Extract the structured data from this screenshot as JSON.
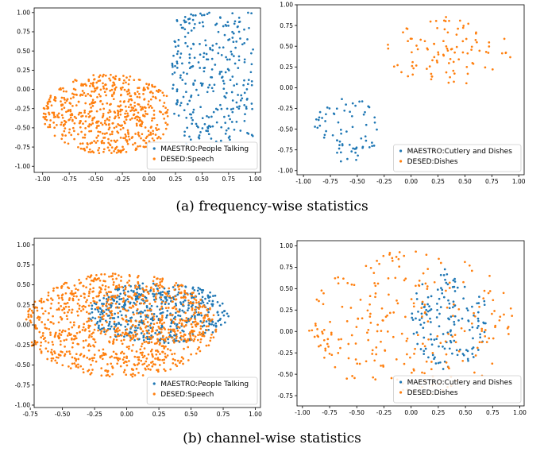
{
  "captions": {
    "a": "(a)  frequency-wise statistics",
    "b": "(b)  channel-wise statistics"
  },
  "colors": {
    "series_1": "#1f77b4",
    "series_2": "#ff7f0e"
  },
  "chart_data": [
    {
      "type": "scatter",
      "panel": "a-left",
      "xlim": [
        -1.08,
        1.05
      ],
      "ylim": [
        -1.08,
        1.06
      ],
      "xticks": [
        "-1.00",
        "-0.75",
        "-0.50",
        "-0.25",
        "0.00",
        "0.25",
        "0.50",
        "0.75",
        "1.00"
      ],
      "yticks": [
        "1.00",
        "0.75",
        "0.50",
        "0.25",
        "0.00",
        "-0.25",
        "-0.50",
        "-0.75",
        "-1.00"
      ],
      "legend_position": "lower-right",
      "grid": false,
      "series": [
        {
          "name": "MAESTRO:People Talking",
          "color": "#1f77b4",
          "n": 300,
          "cluster": {
            "type": "uniform",
            "x": [
              0.22,
              0.98
            ],
            "y": [
              -0.75,
              1.0
            ],
            "center": [
              0.55,
              0.2
            ]
          }
        },
        {
          "name": "DESED:Speech",
          "color": "#ff7f0e",
          "n": 600,
          "cluster": {
            "type": "ellipse",
            "cx": -0.38,
            "cy": -0.32,
            "rx": 0.62,
            "ry": 0.52,
            "xmax": 0.18,
            "ymin": -1.0
          }
        }
      ]
    },
    {
      "type": "scatter",
      "panel": "a-right",
      "xlim": [
        -1.06,
        1.05
      ],
      "ylim": [
        -1.05,
        1.0
      ],
      "xticks": [
        "-1.00",
        "-0.75",
        "-0.50",
        "-0.25",
        "0.00",
        "0.25",
        "0.50",
        "0.75",
        "1.00"
      ],
      "yticks": [
        "1.00",
        "0.75",
        "0.50",
        "0.25",
        "0.00",
        "-0.25",
        "-0.50",
        "-0.75",
        "-1.00"
      ],
      "legend_position": "lower-right",
      "grid": false,
      "series": [
        {
          "name": "MAESTRO:Cutlery and Dishes",
          "color": "#1f77b4",
          "n": 70,
          "cluster": {
            "type": "ellipse",
            "cx": -0.6,
            "cy": -0.5,
            "rx": 0.3,
            "ry": 0.4
          }
        },
        {
          "name": "DESED:Dishes",
          "color": "#ff7f0e",
          "n": 100,
          "cluster": {
            "type": "ellipse",
            "cx": 0.35,
            "cy": 0.45,
            "rx": 0.6,
            "ry": 0.42
          }
        }
      ]
    },
    {
      "type": "scatter",
      "panel": "b-left",
      "xlim": [
        -0.72,
        1.04
      ],
      "ylim": [
        -1.03,
        1.08
      ],
      "xticks": [
        "-0.75",
        "-0.50",
        "-0.25",
        "0.00",
        "0.25",
        "0.50",
        "0.75",
        "1.00"
      ],
      "yticks": [
        "1.00",
        "0.75",
        "0.50",
        "0.25",
        "0.00",
        "-0.25",
        "-0.50",
        "-0.75",
        "-1.00"
      ],
      "legend_position": "lower-right",
      "grid": false,
      "series": [
        {
          "name": "MAESTRO:People Talking",
          "color": "#1f77b4",
          "n": 500,
          "cluster": {
            "type": "ellipse",
            "cx": 0.25,
            "cy": 0.15,
            "rx": 0.55,
            "ry": 0.38
          }
        },
        {
          "name": "DESED:Speech",
          "color": "#ff7f0e",
          "n": 1000,
          "cluster": {
            "type": "mixed",
            "cx": -0.05,
            "cy": 0.0,
            "rx": 0.75,
            "ry": 0.65
          }
        }
      ]
    },
    {
      "type": "scatter",
      "panel": "b-right",
      "xlim": [
        -1.05,
        1.04
      ],
      "ylim": [
        -0.87,
        1.06
      ],
      "xticks": [
        "-1.00",
        "-0.75",
        "-0.50",
        "-0.25",
        "0.00",
        "0.25",
        "0.50",
        "0.75",
        "1.00"
      ],
      "yticks": [
        "1.00",
        "0.75",
        "0.50",
        "0.25",
        "0.00",
        "-0.25",
        "-0.50",
        "-0.75"
      ],
      "legend_position": "lower-right",
      "grid": false,
      "series": [
        {
          "name": "MAESTRO:Cutlery and Dishes",
          "color": "#1f77b4",
          "n": 150,
          "cluster": {
            "type": "ellipse",
            "cx": 0.35,
            "cy": 0.15,
            "rx": 0.35,
            "ry": 0.6
          }
        },
        {
          "name": "DESED:Dishes",
          "color": "#ff7f0e",
          "n": 250,
          "cluster": {
            "type": "ellipse",
            "cx": 0.0,
            "cy": 0.1,
            "rx": 0.95,
            "ry": 0.85
          }
        }
      ]
    }
  ]
}
